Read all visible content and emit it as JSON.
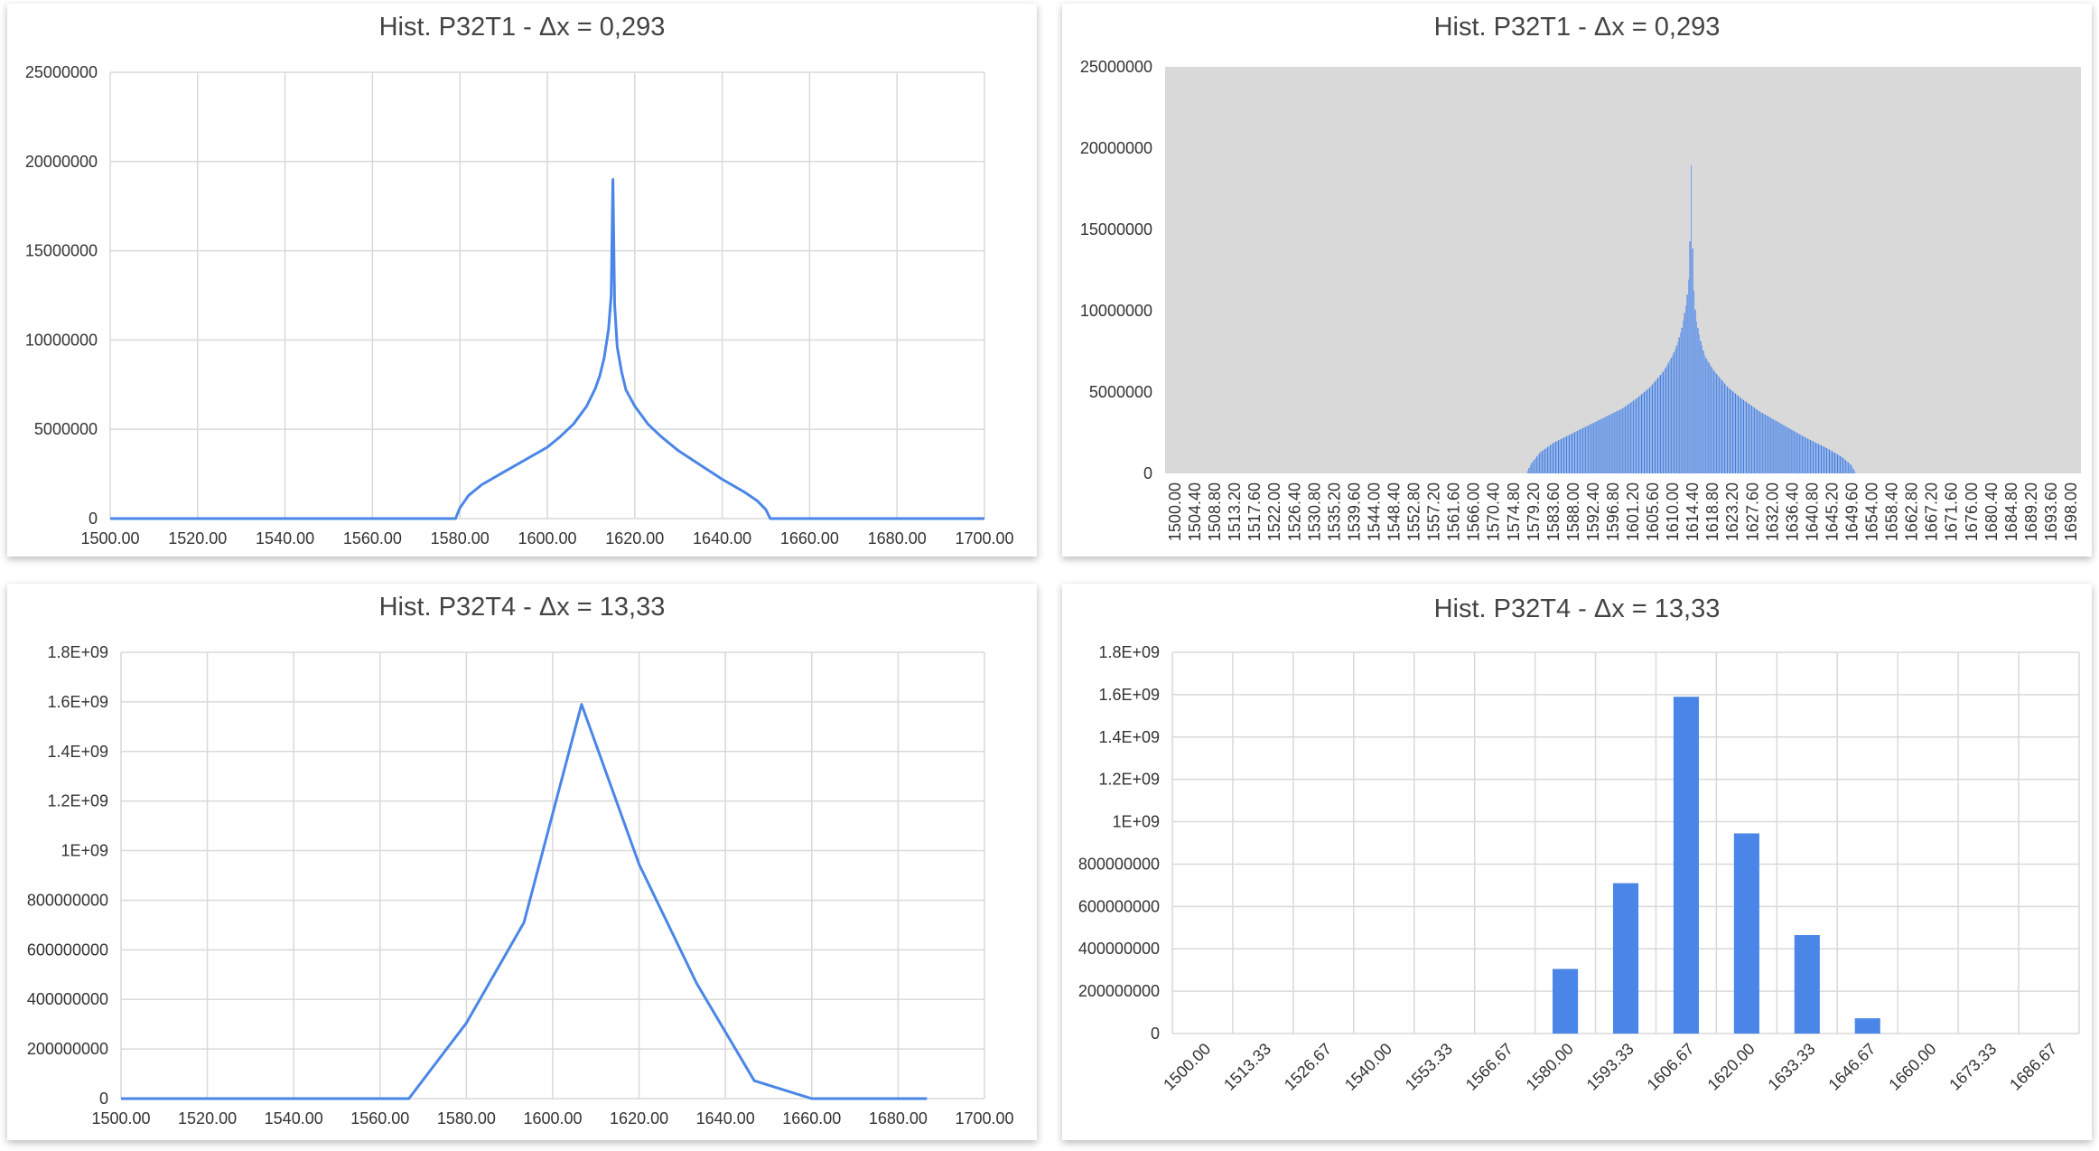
{
  "colors": {
    "series": "#4a86e8",
    "grid": "#d9d9d9",
    "plot_bg_gray": "#d9d9d9"
  },
  "chart_data": [
    {
      "id": "tl",
      "type": "line",
      "title": "Hist. P32T1 - Δx = 0,293",
      "xlabel": "",
      "ylabel": "",
      "xlim": [
        1500,
        1700
      ],
      "ylim": [
        0,
        25000000
      ],
      "x_tick_labels": [
        "1500.00",
        "1520.00",
        "1540.00",
        "1560.00",
        "1580.00",
        "1600.00",
        "1620.00",
        "1640.00",
        "1660.00",
        "1680.00",
        "1700.00"
      ],
      "y_tick_labels": [
        "0",
        "5000000",
        "10000000",
        "15000000",
        "20000000",
        "25000000"
      ],
      "grid": true,
      "series": [
        {
          "x": [
            1500,
            1579,
            1580,
            1582,
            1585,
            1590,
            1595,
            1600,
            1603,
            1606,
            1609,
            1611,
            1612,
            1613,
            1614,
            1614.6,
            1615,
            1615.4,
            1616,
            1617,
            1618,
            1620,
            1623,
            1626,
            1630,
            1635,
            1640,
            1645,
            1648,
            1650,
            1651,
            1652,
            1700
          ],
          "y": [
            0,
            0,
            600000,
            1300000,
            1900000,
            2600000,
            3300000,
            4000000,
            4600000,
            5300000,
            6300000,
            7300000,
            8000000,
            9000000,
            10600000,
            12500000,
            19000000,
            12000000,
            9600000,
            8200000,
            7200000,
            6300000,
            5300000,
            4600000,
            3800000,
            3000000,
            2200000,
            1500000,
            1000000,
            500000,
            0,
            0,
            0
          ]
        }
      ]
    },
    {
      "id": "tr",
      "type": "bar",
      "title": "Hist. P32T1 - Δx = 0,293",
      "xlabel": "",
      "ylabel": "",
      "bin_width": 0.293,
      "ylim": [
        0,
        25000000
      ],
      "x_tick_labels": [
        "1500.00",
        "1504.40",
        "1508.80",
        "1513.20",
        "1517.60",
        "1522.00",
        "1526.40",
        "1530.80",
        "1535.20",
        "1539.60",
        "1544.00",
        "1548.40",
        "1552.80",
        "1557.20",
        "1561.60",
        "1566.00",
        "1570.40",
        "1574.80",
        "1579.20",
        "1583.60",
        "1588.00",
        "1592.40",
        "1596.80",
        "1601.20",
        "1605.60",
        "1610.00",
        "1614.40",
        "1618.80",
        "1623.20",
        "1627.60",
        "1632.00",
        "1636.40",
        "1640.80",
        "1645.20",
        "1649.60",
        "1654.00",
        "1658.40",
        "1662.80",
        "1667.20",
        "1671.60",
        "1676.00",
        "1680.40",
        "1684.80",
        "1689.20",
        "1693.60",
        "1698.00"
      ],
      "y_tick_labels": [
        "0",
        "5000000",
        "10000000",
        "15000000",
        "20000000",
        "25000000"
      ],
      "grid": false,
      "series": [
        {
          "x": [
            1500,
            1579,
            1580,
            1582,
            1585,
            1590,
            1595,
            1600,
            1603,
            1606,
            1609,
            1611,
            1612,
            1613,
            1614,
            1614.6,
            1615,
            1615.4,
            1616,
            1617,
            1618,
            1620,
            1623,
            1626,
            1630,
            1635,
            1640,
            1645,
            1648,
            1650,
            1651,
            1652,
            1700
          ],
          "y": [
            0,
            0,
            600000,
            1300000,
            1900000,
            2600000,
            3300000,
            4000000,
            4600000,
            5300000,
            6300000,
            7300000,
            8000000,
            9000000,
            10600000,
            12500000,
            19000000,
            12000000,
            9600000,
            8200000,
            7200000,
            6300000,
            5300000,
            4600000,
            3800000,
            3000000,
            2200000,
            1500000,
            1000000,
            500000,
            0,
            0,
            0
          ]
        }
      ]
    },
    {
      "id": "bl",
      "type": "line",
      "title": "Hist. P32T4 - Δx = 13,33",
      "xlabel": "",
      "ylabel": "",
      "xlim": [
        1500,
        1700
      ],
      "ylim": [
        0,
        1800000000
      ],
      "x_tick_labels": [
        "1500.00",
        "1520.00",
        "1540.00",
        "1560.00",
        "1580.00",
        "1600.00",
        "1620.00",
        "1640.00",
        "1660.00",
        "1680.00",
        "1700.00"
      ],
      "y_tick_labels": [
        "0",
        "200000000",
        "400000000",
        "600000000",
        "800000000",
        "1E+09",
        "1.2E+09",
        "1.4E+09",
        "1.6E+09",
        "1.8E+09"
      ],
      "grid": true,
      "series": [
        {
          "x": [
            1500,
            1513.33,
            1526.67,
            1540,
            1553.33,
            1566.67,
            1580,
            1593.33,
            1606.67,
            1620,
            1633.33,
            1646.67,
            1660,
            1673.33,
            1686.67
          ],
          "y": [
            0,
            0,
            0,
            0,
            0,
            0,
            305000000,
            710000000,
            1590000000,
            945000000,
            465000000,
            72000000,
            0,
            0,
            0
          ]
        }
      ]
    },
    {
      "id": "br",
      "type": "bar",
      "title": "Hist. P32T4 - Δx = 13,33",
      "xlabel": "",
      "ylabel": "",
      "ylim": [
        0,
        1800000000
      ],
      "categories": [
        "1500.00",
        "1513.33",
        "1526.67",
        "1540.00",
        "1553.33",
        "1566.67",
        "1580.00",
        "1593.33",
        "1606.67",
        "1620.00",
        "1633.33",
        "1646.67",
        "1660.00",
        "1673.33",
        "1686.67"
      ],
      "values": [
        0,
        0,
        0,
        0,
        0,
        0,
        305000000,
        710000000,
        1590000000,
        945000000,
        465000000,
        72000000,
        0,
        0,
        0
      ],
      "y_tick_labels": [
        "0",
        "200000000",
        "400000000",
        "600000000",
        "800000000",
        "1E+09",
        "1.2E+09",
        "1.4E+09",
        "1.6E+09",
        "1.8E+09"
      ],
      "grid": true
    }
  ]
}
